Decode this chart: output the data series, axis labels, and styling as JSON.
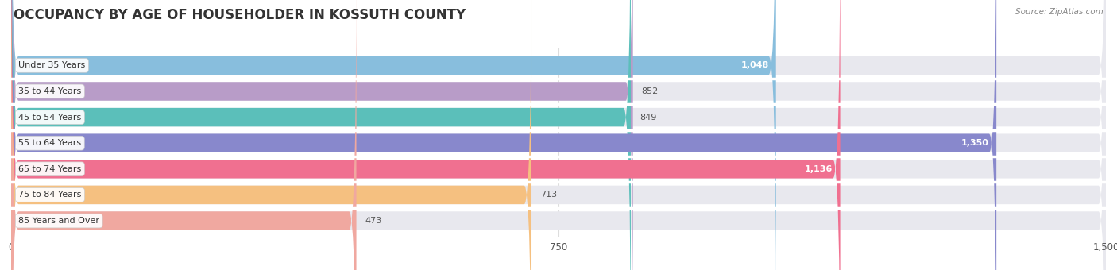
{
  "title": "OCCUPANCY BY AGE OF HOUSEHOLDER IN KOSSUTH COUNTY",
  "source": "Source: ZipAtlas.com",
  "categories": [
    "Under 35 Years",
    "35 to 44 Years",
    "45 to 54 Years",
    "55 to 64 Years",
    "65 to 74 Years",
    "75 to 84 Years",
    "85 Years and Over"
  ],
  "values": [
    1048,
    852,
    849,
    1350,
    1136,
    713,
    473
  ],
  "labels": [
    "1,048",
    "852",
    "849",
    "1,350",
    "1,136",
    "713",
    "473"
  ],
  "bar_colors": [
    "#88bedd",
    "#b89cc8",
    "#5bbfba",
    "#8888cc",
    "#f07090",
    "#f5c080",
    "#f0a8a0"
  ],
  "xlim": [
    0,
    1500
  ],
  "xticks": [
    0,
    750,
    1500
  ],
  "xtick_labels": [
    "0",
    "750",
    "1,500"
  ],
  "background_color": "#ffffff",
  "bar_bg_color": "#e8e8ee",
  "title_fontsize": 12,
  "label_fontsize": 8,
  "value_fontsize": 8,
  "bar_height": 0.72,
  "inside_label_threshold": 1000,
  "inside_label_color": "#ffffff",
  "outside_label_color": "#555555"
}
